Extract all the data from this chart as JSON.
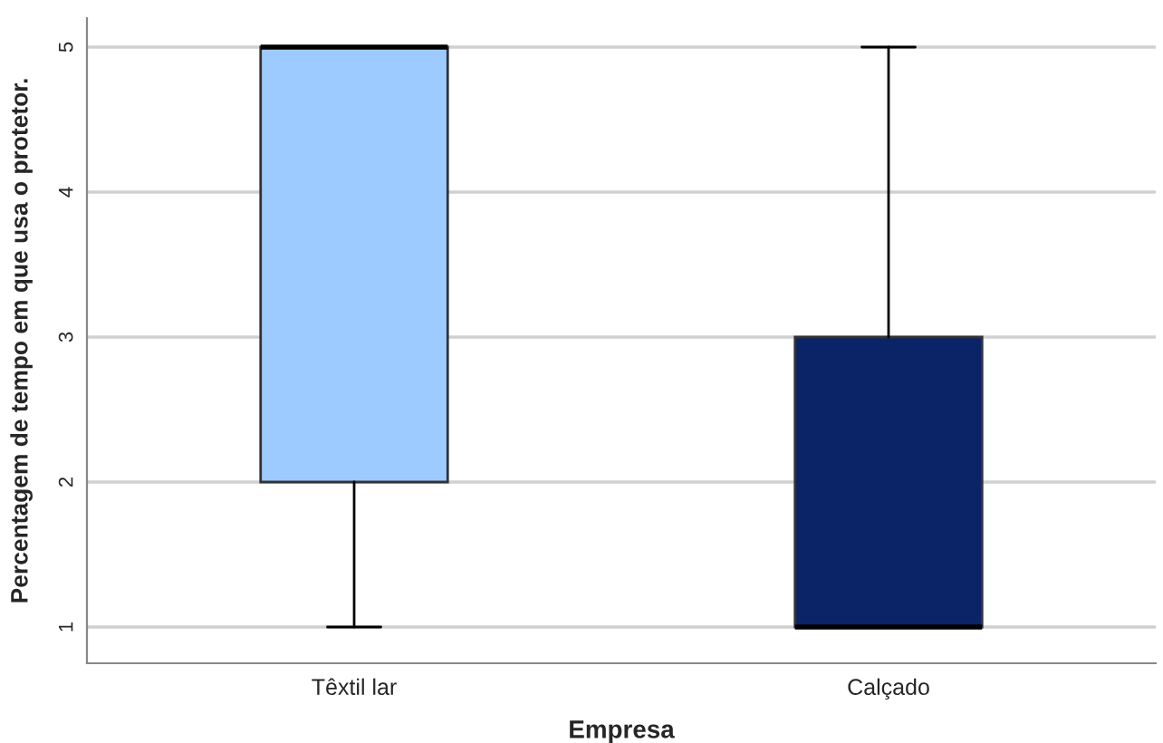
{
  "chart_data": {
    "type": "box",
    "xlabel": "Empresa",
    "ylabel": "Percentagem de tempo em que usa o protetor.",
    "categories": [
      "Têxtil lar",
      "Calçado"
    ],
    "series": [
      {
        "colors": [
          "#9ecbff",
          "#0b2468"
        ],
        "boxes": [
          {
            "low": 1,
            "q1": 2,
            "median": 5,
            "q3": 5,
            "high": 5
          },
          {
            "low": 1,
            "q1": 1,
            "median": 1,
            "q3": 3,
            "high": 5
          }
        ]
      }
    ],
    "ylim": [
      0.75,
      5.2
    ],
    "yticks": [
      1,
      2,
      3,
      4,
      5
    ],
    "grid": "y"
  }
}
